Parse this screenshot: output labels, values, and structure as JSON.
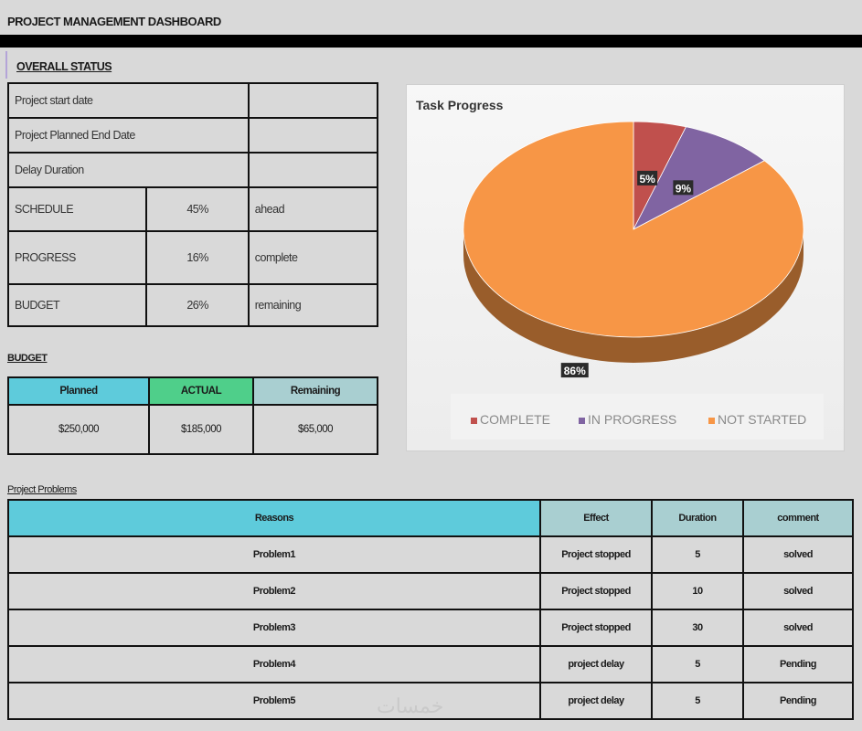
{
  "title": "PROJECT MANAGEMENT DASHBOARD",
  "overall_status": {
    "heading": "OVERALL STATUS",
    "rows": [
      {
        "label": "Project start date",
        "value": ""
      },
      {
        "label": "Project Planned End Date",
        "value": ""
      },
      {
        "label": "Delay Duration",
        "value": ""
      }
    ],
    "metrics": [
      {
        "label": "SCHEDULE",
        "value": "45%",
        "status": "ahead"
      },
      {
        "label": "PROGRESS",
        "value": "16%",
        "status": "complete"
      },
      {
        "label": "BUDGET",
        "value": "26%",
        "status": "remaining"
      }
    ]
  },
  "budget": {
    "heading": "BUDGET",
    "headers": [
      "Planned",
      "ACTUAL",
      "Remaining"
    ],
    "header_colors": [
      "#5ecbdb",
      "#4fcf8a",
      "#a9cfd1"
    ],
    "values": [
      "$250,000",
      "$185,000",
      "$65,000"
    ]
  },
  "problems": {
    "heading": "Project Problems",
    "headers": [
      "Reasons",
      "Effect",
      "Duration",
      "comment"
    ],
    "rows": [
      {
        "reason": "Problem1",
        "effect": "Project stopped",
        "duration": "5",
        "comment": "solved"
      },
      {
        "reason": "Problem2",
        "effect": "Project stopped",
        "duration": "10",
        "comment": "solved"
      },
      {
        "reason": "Problem3",
        "effect": "Project stopped",
        "duration": "30",
        "comment": "solved"
      },
      {
        "reason": "Problem4",
        "effect": "project delay",
        "duration": "5",
        "comment": "Pending"
      },
      {
        "reason": "Problem5",
        "effect": "project delay",
        "duration": "5",
        "comment": "Pending"
      }
    ]
  },
  "chart_data": {
    "type": "pie",
    "title": "Task Progress",
    "categories": [
      "COMPLETE",
      "IN PROGRESS",
      "NOT STARTED"
    ],
    "values": [
      5,
      9,
      86
    ],
    "labels": [
      "5%",
      "9%",
      "86%"
    ],
    "colors": [
      "#c0504d",
      "#8064a2",
      "#f79646"
    ],
    "legend_position": "bottom"
  },
  "watermark": "خمسات"
}
